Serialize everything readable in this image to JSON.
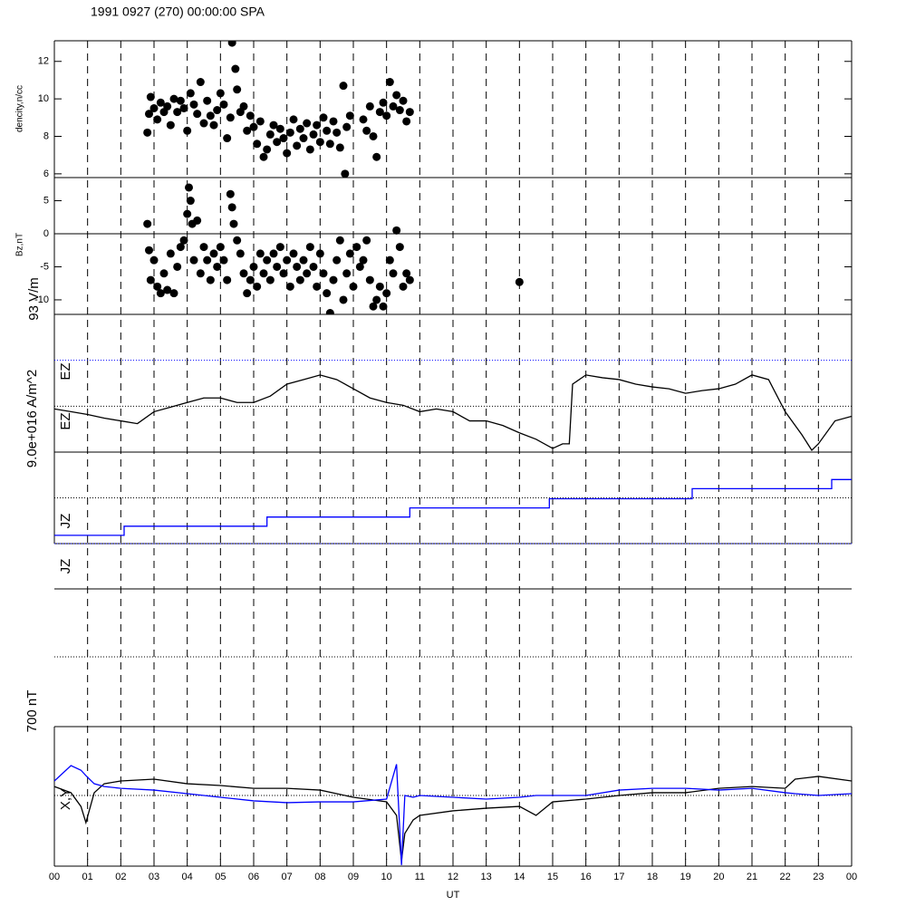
{
  "title": "1991 0927 (270) 00:00:00 SPA",
  "annotations": [
    "93 V/m",
    "EZ",
    "EZ",
    "9.0e+016 A/m^2",
    "JZ",
    "JZ",
    "700 nT",
    "X,Y"
  ],
  "x_axis": {
    "label": "UT",
    "xlim": [
      0,
      24
    ],
    "grid": true,
    "xticks": [
      {
        "value": 0,
        "label": "00"
      },
      {
        "value": 1,
        "label": "01"
      },
      {
        "value": 2,
        "label": "02"
      },
      {
        "value": 3,
        "label": "03"
      },
      {
        "value": 4,
        "label": "04"
      },
      {
        "value": 5,
        "label": "05"
      },
      {
        "value": 6,
        "label": "06"
      },
      {
        "value": 7,
        "label": "07"
      },
      {
        "value": 8,
        "label": "08"
      },
      {
        "value": 9,
        "label": "09"
      },
      {
        "value": 10,
        "label": "10"
      },
      {
        "value": 11,
        "label": "11"
      },
      {
        "value": 12,
        "label": "12"
      },
      {
        "value": 13,
        "label": "13"
      },
      {
        "value": 14,
        "label": "14"
      },
      {
        "value": 15,
        "label": "15"
      },
      {
        "value": 16,
        "label": "16"
      },
      {
        "value": 17,
        "label": "17"
      },
      {
        "value": 18,
        "label": "18"
      },
      {
        "value": 19,
        "label": "19"
      },
      {
        "value": 20,
        "label": "20"
      },
      {
        "value": 21,
        "label": "21"
      },
      {
        "value": 22,
        "label": "22"
      },
      {
        "value": 23,
        "label": "23"
      },
      {
        "value": 24,
        "label": "00"
      }
    ]
  },
  "chart_data": [
    {
      "type": "scatter",
      "ylabel": "dencity,n/cc",
      "ylim": [
        5.8,
        13.1
      ],
      "yticks": [
        6,
        8,
        10,
        12
      ],
      "x": [
        2.8,
        2.85,
        2.9,
        3.0,
        3.1,
        3.2,
        3.3,
        3.4,
        3.5,
        3.6,
        3.7,
        3.8,
        3.9,
        4.0,
        4.1,
        4.2,
        4.3,
        4.4,
        4.5,
        4.6,
        4.7,
        4.8,
        4.9,
        5.0,
        5.1,
        5.2,
        5.3,
        5.35,
        5.45,
        5.5,
        5.6,
        5.7,
        5.8,
        5.9,
        6.0,
        6.1,
        6.2,
        6.3,
        6.4,
        6.5,
        6.6,
        6.7,
        6.8,
        6.9,
        7.0,
        7.1,
        7.2,
        7.3,
        7.4,
        7.5,
        7.6,
        7.7,
        7.8,
        7.9,
        8.0,
        8.1,
        8.2,
        8.3,
        8.4,
        8.5,
        8.6,
        8.7,
        8.75,
        8.8,
        8.9,
        9.3,
        9.4,
        9.5,
        9.6,
        9.7,
        9.8,
        9.9,
        10.0,
        10.1,
        10.2,
        10.3,
        10.4,
        10.5,
        10.6,
        10.7
      ],
      "series": [
        {
          "color": "#000000",
          "values": [
            8.2,
            9.2,
            10.1,
            9.5,
            8.9,
            9.8,
            9.3,
            9.6,
            8.6,
            10.0,
            9.3,
            9.9,
            9.5,
            8.3,
            10.3,
            9.7,
            9.2,
            10.9,
            8.7,
            9.9,
            9.1,
            8.6,
            9.4,
            10.3,
            9.7,
            7.9,
            9.0,
            13.0,
            11.6,
            10.5,
            9.3,
            9.6,
            8.3,
            9.1,
            8.5,
            7.6,
            8.8,
            6.9,
            7.3,
            8.1,
            8.6,
            7.7,
            8.4,
            7.9,
            7.1,
            8.2,
            8.9,
            7.5,
            8.4,
            7.9,
            8.7,
            7.3,
            8.1,
            8.6,
            7.7,
            9.0,
            8.3,
            7.6,
            8.8,
            8.2,
            7.4,
            10.7,
            6.0,
            8.5,
            9.1,
            8.9,
            8.3,
            9.6,
            8.0,
            6.9,
            9.3,
            9.8,
            9.1,
            10.9,
            9.6,
            10.2,
            9.4,
            9.9,
            8.8,
            9.3
          ]
        }
      ]
    },
    {
      "type": "scatter",
      "ylabel": "Bz,nT",
      "ylim": [
        -12.2,
        8.5
      ],
      "yticks": [
        -10,
        -5,
        0,
        5
      ],
      "ref_lines": [
        {
          "value": 0,
          "color": "#000000",
          "style": "solid"
        }
      ],
      "x": [
        2.8,
        2.85,
        2.9,
        3.0,
        3.1,
        3.2,
        3.3,
        3.4,
        3.5,
        3.6,
        3.7,
        3.8,
        3.9,
        4.0,
        4.05,
        4.1,
        4.15,
        4.2,
        4.3,
        4.4,
        4.5,
        4.6,
        4.7,
        4.8,
        4.9,
        5.0,
        5.1,
        5.2,
        5.3,
        5.35,
        5.4,
        5.5,
        5.6,
        5.7,
        5.8,
        5.9,
        6.0,
        6.1,
        6.2,
        6.3,
        6.4,
        6.5,
        6.6,
        6.7,
        6.8,
        6.9,
        7.0,
        7.1,
        7.2,
        7.3,
        7.4,
        7.5,
        7.6,
        7.7,
        7.8,
        7.9,
        8.0,
        8.1,
        8.2,
        8.3,
        8.4,
        8.5,
        8.6,
        8.7,
        8.8,
        8.9,
        9.0,
        9.1,
        9.2,
        9.3,
        9.4,
        9.5,
        9.6,
        9.7,
        9.8,
        9.9,
        10.0,
        10.1,
        10.2,
        10.3,
        10.4,
        10.5,
        10.6,
        10.7,
        14.0
      ],
      "series": [
        {
          "color": "#000000",
          "values": [
            1.5,
            -2.5,
            -7,
            -4,
            -8,
            -9,
            -6,
            -8.5,
            -3,
            -9,
            -5,
            -2,
            -1,
            3,
            7,
            5,
            1.5,
            -4,
            2,
            -6,
            -2,
            -4,
            -7,
            -3,
            -5,
            -2,
            -4,
            -7,
            6,
            4,
            1.5,
            -1,
            -3,
            -6,
            -9,
            -7,
            -5,
            -8,
            -3,
            -6,
            -4,
            -7,
            -3,
            -5,
            -2,
            -6,
            -4,
            -8,
            -3,
            -5,
            -7,
            -4,
            -6,
            -2,
            -5,
            -8,
            -3,
            -6,
            -9,
            -12,
            -7,
            -4,
            -1,
            -10,
            -6,
            -3,
            -8,
            -2,
            -5,
            -4,
            -1,
            -7,
            -11,
            -10,
            -8,
            -11,
            -9,
            -4,
            -6,
            0.5,
            -2,
            -8,
            -6,
            -7,
            -7.3
          ]
        }
      ]
    },
    {
      "type": "line",
      "ylim": [
        0,
        3
      ],
      "ref_lines": [
        {
          "value": 1,
          "color": "#000000",
          "style": "dotted"
        },
        {
          "value": 2,
          "color": "#0000ff",
          "style": "dotted"
        }
      ],
      "x": [
        0,
        0.5,
        1,
        1.5,
        2,
        2.5,
        3,
        3.5,
        4,
        4.5,
        5,
        5.5,
        6,
        6.5,
        7,
        7.5,
        8,
        8.5,
        9,
        9.5,
        10,
        10.5,
        11,
        11.5,
        12,
        12.5,
        13,
        13.5,
        14,
        14.5,
        15,
        15.3,
        15.5,
        15.6,
        16,
        16.5,
        17,
        17.5,
        18,
        18.5,
        19,
        19.5,
        20,
        20.5,
        21,
        21.5,
        22,
        22.5,
        22.8,
        23,
        23.5,
        24
      ],
      "series": [
        {
          "color": "#000000",
          "values": [
            0.94,
            0.88,
            0.82,
            0.74,
            0.68,
            0.62,
            0.88,
            0.98,
            1.08,
            1.18,
            1.18,
            1.08,
            1.08,
            1.22,
            1.48,
            1.58,
            1.68,
            1.58,
            1.38,
            1.18,
            1.08,
            1.02,
            0.88,
            0.94,
            0.88,
            0.68,
            0.68,
            0.58,
            0.42,
            0.28,
            0.08,
            0.18,
            0.18,
            1.48,
            1.68,
            1.62,
            1.58,
            1.48,
            1.42,
            1.38,
            1.28,
            1.34,
            1.38,
            1.48,
            1.68,
            1.58,
            0.88,
            0.38,
            0.04,
            0.18,
            0.68,
            0.78
          ]
        }
      ]
    },
    {
      "type": "step",
      "ylim": [
        0,
        2
      ],
      "ref_lines": [
        {
          "value": 0,
          "color": "#0000ff",
          "style": "dotted"
        },
        {
          "value": 1,
          "color": "#000000",
          "style": "dotted"
        }
      ],
      "x": [
        0,
        2.1,
        6.4,
        10.7,
        14.9,
        19.2,
        23.4
      ],
      "series": [
        {
          "color": "#0000ff",
          "values": [
            0.18,
            0.38,
            0.58,
            0.78,
            0.98,
            1.2,
            1.4
          ]
        }
      ]
    },
    {
      "type": "line",
      "ylim": [
        -355,
        346
      ],
      "ref_lines": [
        {
          "value": 0,
          "color": "#000000",
          "style": "dotted"
        }
      ],
      "x": [
        0,
        0.5,
        0.8,
        0.95,
        1.2,
        1.5,
        2,
        3,
        4,
        5,
        6,
        7,
        8,
        9,
        10,
        10.3,
        10.45,
        10.55,
        10.8,
        11,
        12,
        13,
        14,
        14.5,
        15,
        16,
        17,
        18,
        19,
        20,
        21,
        22,
        22.3,
        23,
        24
      ],
      "series": [
        {
          "color": "#000000",
          "values": [
            45,
            14,
            -55,
            -136,
            14,
            59,
            73,
            82,
            59,
            50,
            36,
            36,
            27,
            -9,
            -32,
            -100,
            -328,
            -191,
            -123,
            -100,
            -77,
            -64,
            -55,
            -100,
            -32,
            -18,
            0,
            14,
            14,
            36,
            45,
            36,
            82,
            96,
            73
          ]
        },
        {
          "color": "#0000ff",
          "values": [
            73,
            150,
            127,
            100,
            59,
            45,
            36,
            27,
            9,
            -9,
            -27,
            -36,
            -32,
            -32,
            -18,
            157,
            -350,
            0,
            -9,
            0,
            -9,
            -18,
            -9,
            0,
            0,
            0,
            27,
            36,
            36,
            27,
            36,
            14,
            9,
            0,
            9
          ]
        }
      ]
    }
  ]
}
